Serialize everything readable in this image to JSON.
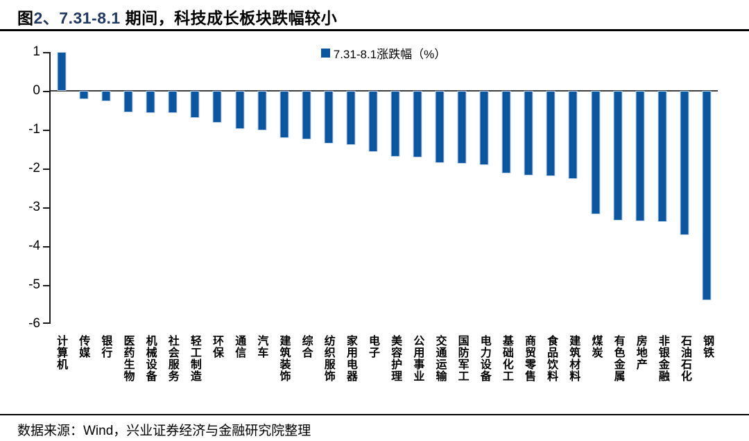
{
  "header": {
    "title_prefix": "图",
    "title_highlight": "2、7.31-8.1",
    "title_rest": " 期间，科技成长板块跌幅较小"
  },
  "footer": {
    "source": "数据来源：Wind，兴业证券经济与金融研究院整理"
  },
  "chart_data": {
    "type": "bar",
    "title": "图2、7.31-8.1 期间，科技成长板块跌幅较小",
    "legend": "7.31-8.1涨跌幅（%）",
    "legend_position": "top-center",
    "grid": false,
    "ylim": [
      -6,
      1
    ],
    "yticks": [
      "1",
      "0",
      "-1",
      "-2",
      "-3",
      "-4",
      "-5",
      "-6"
    ],
    "bar_color": "#0B56A0",
    "bar_border_color": "#B7D0EC",
    "categories": [
      "计算机",
      "传媒",
      "银行",
      "医药生物",
      "机械设备",
      "社会服务",
      "轻工制造",
      "环保",
      "通信",
      "汽车",
      "建筑装饰",
      "综合",
      "纺织服饰",
      "家用电器",
      "电子",
      "美容护理",
      "公用事业",
      "交通运输",
      "国防军工",
      "电力设备",
      "基础化工",
      "商贸零售",
      "食品饮料",
      "建筑材料",
      "煤炭",
      "有色金属",
      "房地产",
      "非银金融",
      "石油石化",
      "钢铁"
    ],
    "values": [
      1.0,
      -0.22,
      -0.27,
      -0.56,
      -0.57,
      -0.58,
      -0.7,
      -0.82,
      -0.99,
      -1.02,
      -1.22,
      -1.25,
      -1.35,
      -1.4,
      -1.58,
      -1.7,
      -1.72,
      -1.85,
      -1.88,
      -1.91,
      -2.12,
      -2.17,
      -2.19,
      -2.27,
      -3.17,
      -3.34,
      -3.36,
      -3.38,
      -3.72,
      -5.4
    ]
  }
}
